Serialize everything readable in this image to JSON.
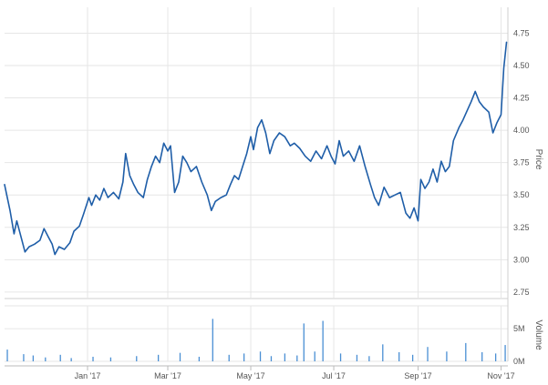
{
  "chart_data": {
    "type": "line",
    "title": "",
    "price_axis": {
      "label": "Price",
      "ylim": [
        2.7,
        4.95
      ],
      "ticks": [
        2.75,
        3.0,
        3.25,
        3.5,
        3.75,
        4.0,
        4.25,
        4.5,
        4.75
      ],
      "tick_labels": [
        "2.75",
        "3.00",
        "3.25",
        "3.50",
        "3.75",
        "4.00",
        "4.25",
        "4.50",
        "4.75"
      ],
      "position": "right"
    },
    "volume_axis": {
      "label": "Volume",
      "ylim": [
        0,
        8.5
      ],
      "ticks": [
        0,
        5
      ],
      "tick_labels": [
        "0M",
        "5M"
      ],
      "position": "right"
    },
    "x_axis": {
      "range": [
        "2016-11-01",
        "2017-11-06"
      ],
      "ticks": [
        "2017-01-01",
        "2017-03-01",
        "2017-05-01",
        "2017-07-01",
        "2017-09-01",
        "2017-11-01"
      ],
      "tick_labels": [
        "Jan '17",
        "Mar '17",
        "May '17",
        "Jul '17",
        "Sep '17",
        "Nov '17"
      ]
    },
    "grid": true,
    "legend": "none",
    "colors": {
      "line": "#1f5ea8",
      "volume": "#4a8fd4",
      "grid": "#e6e6e6"
    },
    "series": [
      {
        "values": [
          [
            "2016-11-01",
            3.58
          ],
          [
            "2016-11-05",
            3.38
          ],
          [
            "2016-11-08",
            3.2
          ],
          [
            "2016-11-10",
            3.3
          ],
          [
            "2016-11-13",
            3.18
          ],
          [
            "2016-11-16",
            3.06
          ],
          [
            "2016-11-19",
            3.1
          ],
          [
            "2016-11-23",
            3.12
          ],
          [
            "2016-11-27",
            3.15
          ],
          [
            "2016-11-30",
            3.24
          ],
          [
            "2016-12-03",
            3.18
          ],
          [
            "2016-12-06",
            3.12
          ],
          [
            "2016-12-08",
            3.04
          ],
          [
            "2016-12-11",
            3.1
          ],
          [
            "2016-12-15",
            3.08
          ],
          [
            "2016-12-19",
            3.13
          ],
          [
            "2016-12-22",
            3.22
          ],
          [
            "2016-12-26",
            3.26
          ],
          [
            "2016-12-29",
            3.35
          ],
          [
            "2017-01-02",
            3.48
          ],
          [
            "2017-01-04",
            3.42
          ],
          [
            "2017-01-07",
            3.5
          ],
          [
            "2017-01-10",
            3.46
          ],
          [
            "2017-01-13",
            3.55
          ],
          [
            "2017-01-16",
            3.48
          ],
          [
            "2017-01-20",
            3.52
          ],
          [
            "2017-01-24",
            3.47
          ],
          [
            "2017-01-27",
            3.6
          ],
          [
            "2017-01-29",
            3.82
          ],
          [
            "2017-02-01",
            3.65
          ],
          [
            "2017-02-04",
            3.58
          ],
          [
            "2017-02-07",
            3.52
          ],
          [
            "2017-02-11",
            3.48
          ],
          [
            "2017-02-14",
            3.62
          ],
          [
            "2017-02-17",
            3.72
          ],
          [
            "2017-02-20",
            3.8
          ],
          [
            "2017-02-23",
            3.75
          ],
          [
            "2017-02-26",
            3.9
          ],
          [
            "2017-03-01",
            3.84
          ],
          [
            "2017-03-03",
            3.88
          ],
          [
            "2017-03-06",
            3.52
          ],
          [
            "2017-03-09",
            3.6
          ],
          [
            "2017-03-12",
            3.8
          ],
          [
            "2017-03-15",
            3.75
          ],
          [
            "2017-03-18",
            3.68
          ],
          [
            "2017-03-22",
            3.72
          ],
          [
            "2017-03-26",
            3.6
          ],
          [
            "2017-03-30",
            3.5
          ],
          [
            "2017-04-02",
            3.38
          ],
          [
            "2017-04-05",
            3.45
          ],
          [
            "2017-04-09",
            3.48
          ],
          [
            "2017-04-13",
            3.5
          ],
          [
            "2017-04-16",
            3.58
          ],
          [
            "2017-04-19",
            3.65
          ],
          [
            "2017-04-22",
            3.62
          ],
          [
            "2017-04-25",
            3.72
          ],
          [
            "2017-04-28",
            3.82
          ],
          [
            "2017-05-01",
            3.95
          ],
          [
            "2017-05-03",
            3.85
          ],
          [
            "2017-05-06",
            4.02
          ],
          [
            "2017-05-09",
            4.08
          ],
          [
            "2017-05-12",
            3.98
          ],
          [
            "2017-05-15",
            3.82
          ],
          [
            "2017-05-18",
            3.92
          ],
          [
            "2017-05-22",
            3.98
          ],
          [
            "2017-05-26",
            3.95
          ],
          [
            "2017-05-30",
            3.88
          ],
          [
            "2017-06-02",
            3.9
          ],
          [
            "2017-06-06",
            3.86
          ],
          [
            "2017-06-10",
            3.8
          ],
          [
            "2017-06-14",
            3.76
          ],
          [
            "2017-06-18",
            3.84
          ],
          [
            "2017-06-22",
            3.78
          ],
          [
            "2017-06-26",
            3.88
          ],
          [
            "2017-06-29",
            3.8
          ],
          [
            "2017-07-02",
            3.74
          ],
          [
            "2017-07-05",
            3.92
          ],
          [
            "2017-07-08",
            3.8
          ],
          [
            "2017-07-12",
            3.84
          ],
          [
            "2017-07-16",
            3.76
          ],
          [
            "2017-07-20",
            3.88
          ],
          [
            "2017-07-24",
            3.72
          ],
          [
            "2017-07-28",
            3.58
          ],
          [
            "2017-07-31",
            3.48
          ],
          [
            "2017-08-03",
            3.42
          ],
          [
            "2017-08-07",
            3.56
          ],
          [
            "2017-08-11",
            3.48
          ],
          [
            "2017-08-15",
            3.5
          ],
          [
            "2017-08-19",
            3.52
          ],
          [
            "2017-08-23",
            3.36
          ],
          [
            "2017-08-26",
            3.32
          ],
          [
            "2017-08-29",
            3.4
          ],
          [
            "2017-09-01",
            3.3
          ],
          [
            "2017-09-03",
            3.62
          ],
          [
            "2017-09-06",
            3.55
          ],
          [
            "2017-09-09",
            3.6
          ],
          [
            "2017-09-12",
            3.7
          ],
          [
            "2017-09-15",
            3.6
          ],
          [
            "2017-09-18",
            3.76
          ],
          [
            "2017-09-21",
            3.68
          ],
          [
            "2017-09-24",
            3.72
          ],
          [
            "2017-09-27",
            3.92
          ],
          [
            "2017-10-01",
            4.02
          ],
          [
            "2017-10-04",
            4.08
          ],
          [
            "2017-10-07",
            4.15
          ],
          [
            "2017-10-10",
            4.22
          ],
          [
            "2017-10-13",
            4.3
          ],
          [
            "2017-10-16",
            4.22
          ],
          [
            "2017-10-19",
            4.18
          ],
          [
            "2017-10-23",
            4.14
          ],
          [
            "2017-10-26",
            3.98
          ],
          [
            "2017-10-29",
            4.06
          ],
          [
            "2017-11-01",
            4.12
          ],
          [
            "2017-11-03",
            4.48
          ],
          [
            "2017-11-05",
            4.68
          ]
        ]
      }
    ],
    "volume": [
      [
        "2016-11-03",
        1.8
      ],
      [
        "2016-11-15",
        1.1
      ],
      [
        "2016-11-22",
        0.9
      ],
      [
        "2016-12-01",
        0.6
      ],
      [
        "2016-12-12",
        1.0
      ],
      [
        "2016-12-20",
        0.5
      ],
      [
        "2017-01-05",
        0.7
      ],
      [
        "2017-01-18",
        0.6
      ],
      [
        "2017-02-06",
        0.8
      ],
      [
        "2017-02-22",
        1.0
      ],
      [
        "2017-03-10",
        1.3
      ],
      [
        "2017-03-24",
        0.7
      ],
      [
        "2017-04-03",
        6.5
      ],
      [
        "2017-04-15",
        1.0
      ],
      [
        "2017-04-26",
        1.2
      ],
      [
        "2017-05-08",
        1.5
      ],
      [
        "2017-05-16",
        0.8
      ],
      [
        "2017-05-26",
        1.2
      ],
      [
        "2017-06-04",
        0.9
      ],
      [
        "2017-06-09",
        5.8
      ],
      [
        "2017-06-17",
        1.5
      ],
      [
        "2017-06-23",
        6.2
      ],
      [
        "2017-07-06",
        1.2
      ],
      [
        "2017-07-18",
        1.0
      ],
      [
        "2017-07-27",
        0.8
      ],
      [
        "2017-08-06",
        2.6
      ],
      [
        "2017-08-18",
        1.4
      ],
      [
        "2017-08-28",
        1.0
      ],
      [
        "2017-09-08",
        2.2
      ],
      [
        "2017-09-22",
        1.5
      ],
      [
        "2017-10-06",
        2.8
      ],
      [
        "2017-10-18",
        1.4
      ],
      [
        "2017-10-28",
        1.2
      ],
      [
        "2017-11-04",
        2.5
      ]
    ]
  }
}
